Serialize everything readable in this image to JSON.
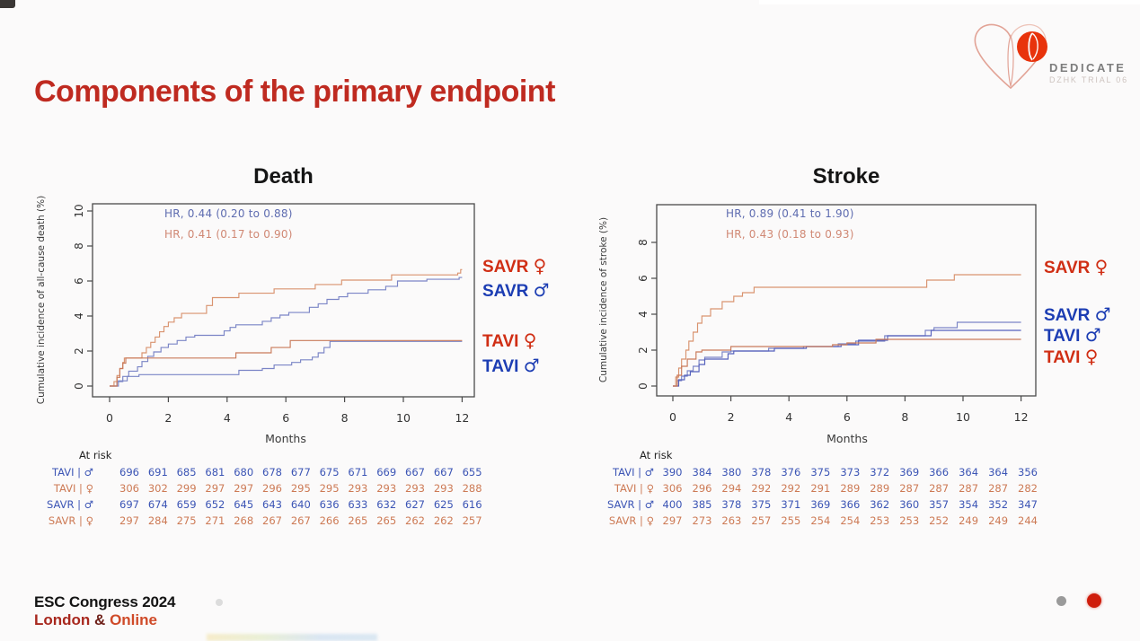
{
  "slide": {
    "title": "Components of the primary endpoint",
    "logo": {
      "name": "DEDICATE",
      "subtitle": "DZHK TRIAL 06"
    },
    "footer": {
      "line1": "ESC Congress 2024",
      "london": "London",
      "amp": "&",
      "online": "Online"
    },
    "nav_dots": [
      {
        "color": "#9a9a9a"
      },
      {
        "color": "#cf1d0c"
      }
    ]
  },
  "colors": {
    "title_red": "#bf2a20",
    "curve_female_orange": "#d9936f",
    "curve_male_blue": "#7b85c6",
    "legend_red": "#d02e14",
    "legend_blue": "#1c3db3",
    "atrisk_blue": "#3c55b5",
    "atrisk_orange": "#cd7a55",
    "axis": "#4a4a4a",
    "logo_red": "#e8330c"
  },
  "chart_data": [
    {
      "type": "line",
      "variant": "kaplan-meier-step",
      "title": "Death",
      "ylabel": "Cumulative incidence of all-cause death (%)",
      "xlabel": "Months",
      "xlim": [
        0,
        12
      ],
      "ylim": [
        0,
        10
      ],
      "xticks": [
        0,
        2,
        4,
        6,
        8,
        10,
        12
      ],
      "yticks": [
        0,
        2,
        4,
        6,
        8,
        10
      ],
      "grid": false,
      "annotations": [
        {
          "text": "HR, 0.44 (0.20 to 0.88)",
          "color": "#5e6cb0"
        },
        {
          "text": "HR, 0.41 (0.17 to 0.90)",
          "color": "#d08874"
        }
      ],
      "series": [
        {
          "name": "SAVR male",
          "color": "#7b85c6",
          "points": [
            [
              0,
              0
            ],
            [
              0.25,
              0.25
            ],
            [
              0.45,
              0.55
            ],
            [
              0.65,
              0.85
            ],
            [
              0.95,
              1.1
            ],
            [
              1.1,
              1.4
            ],
            [
              1.3,
              1.7
            ],
            [
              1.5,
              1.95
            ],
            [
              1.75,
              2.2
            ],
            [
              2.0,
              2.4
            ],
            [
              2.3,
              2.6
            ],
            [
              2.6,
              2.8
            ],
            [
              2.9,
              2.9
            ],
            [
              3.9,
              3.15
            ],
            [
              4.1,
              3.35
            ],
            [
              4.3,
              3.5
            ],
            [
              5.2,
              3.7
            ],
            [
              5.5,
              3.9
            ],
            [
              5.8,
              4.05
            ],
            [
              6.1,
              4.2
            ],
            [
              6.8,
              4.5
            ],
            [
              7.1,
              4.7
            ],
            [
              7.4,
              4.95
            ],
            [
              7.8,
              5.1
            ],
            [
              8.1,
              5.3
            ],
            [
              8.8,
              5.5
            ],
            [
              9.4,
              5.7
            ],
            [
              9.8,
              6.0
            ],
            [
              10.8,
              6.1
            ],
            [
              11.9,
              6.2
            ]
          ]
        },
        {
          "name": "TAVI male",
          "color": "#7b85c6",
          "points": [
            [
              0,
              0
            ],
            [
              0.3,
              0.3
            ],
            [
              0.6,
              0.55
            ],
            [
              1.0,
              0.65
            ],
            [
              4.2,
              0.65
            ],
            [
              4.4,
              0.9
            ],
            [
              5.2,
              1.0
            ],
            [
              5.6,
              1.2
            ],
            [
              6.2,
              1.35
            ],
            [
              6.5,
              1.5
            ],
            [
              6.9,
              1.65
            ],
            [
              7.1,
              1.9
            ],
            [
              7.3,
              2.2
            ],
            [
              7.5,
              2.55
            ]
          ]
        },
        {
          "name": "SAVR female",
          "color": "#d9936f",
          "points": [
            [
              0,
              0
            ],
            [
              0.15,
              0.25
            ],
            [
              0.25,
              0.6
            ],
            [
              0.35,
              1.0
            ],
            [
              0.45,
              1.35
            ],
            [
              0.5,
              1.6
            ],
            [
              1.0,
              1.6
            ],
            [
              1.1,
              1.9
            ],
            [
              1.25,
              2.2
            ],
            [
              1.4,
              2.5
            ],
            [
              1.55,
              2.8
            ],
            [
              1.7,
              3.1
            ],
            [
              1.85,
              3.4
            ],
            [
              2.0,
              3.65
            ],
            [
              2.2,
              3.9
            ],
            [
              2.45,
              4.15
            ],
            [
              3.3,
              4.6
            ],
            [
              3.5,
              5.05
            ],
            [
              4.4,
              5.3
            ],
            [
              5.6,
              5.55
            ],
            [
              7.0,
              5.8
            ],
            [
              7.9,
              6.05
            ],
            [
              9.6,
              6.35
            ],
            [
              11.85,
              6.45
            ],
            [
              11.95,
              6.65
            ]
          ]
        },
        {
          "name": "TAVI female",
          "color": "#c97a5a",
          "points": [
            [
              0,
              0
            ],
            [
              0.25,
              0.5
            ],
            [
              0.35,
              1.0
            ],
            [
              0.45,
              1.3
            ],
            [
              0.55,
              1.6
            ],
            [
              4.15,
              1.6
            ],
            [
              4.3,
              1.9
            ],
            [
              5.4,
              1.9
            ],
            [
              5.5,
              2.2
            ],
            [
              6.0,
              2.2
            ],
            [
              6.15,
              2.6
            ]
          ]
        }
      ],
      "legend": [
        {
          "label": "SAVR",
          "symbol": "♀",
          "color": "#d02e14",
          "y": 6.9
        },
        {
          "label": "SAVR",
          "symbol": "♂",
          "color": "#1c3db3",
          "y": 5.5
        },
        {
          "label": "TAVI",
          "symbol": "♀",
          "color": "#d02e14",
          "y": 2.6
        },
        {
          "label": "TAVI",
          "symbol": "♂",
          "color": "#1c3db3",
          "y": 1.2
        }
      ],
      "at_risk": {
        "title": "At risk",
        "rows": [
          {
            "label": "TAVI",
            "symbol": "♂",
            "color": "#3c55b5",
            "values": [
              696,
              691,
              685,
              681,
              680,
              678,
              677,
              675,
              671,
              669,
              667,
              667,
              655
            ]
          },
          {
            "label": "TAVI",
            "symbol": "♀",
            "color": "#cd7a55",
            "values": [
              306,
              302,
              299,
              297,
              297,
              296,
              295,
              295,
              293,
              293,
              293,
              293,
              288
            ]
          },
          {
            "label": "SAVR",
            "symbol": "♂",
            "color": "#3c55b5",
            "values": [
              697,
              674,
              659,
              652,
              645,
              643,
              640,
              636,
              633,
              632,
              627,
              625,
              616
            ]
          },
          {
            "label": "SAVR",
            "symbol": "♀",
            "color": "#cd7a55",
            "values": [
              297,
              284,
              275,
              271,
              268,
              267,
              267,
              266,
              265,
              265,
              262,
              262,
              257
            ]
          }
        ]
      }
    },
    {
      "type": "line",
      "variant": "kaplan-meier-step",
      "title": "Stroke",
      "ylabel": "Cumulative incidence of stroke (%)",
      "xlabel": "Months",
      "xlim": [
        0,
        12
      ],
      "ylim": [
        0,
        8
      ],
      "xticks": [
        0,
        2,
        4,
        6,
        8,
        10,
        12
      ],
      "yticks": [
        0,
        2,
        4,
        6,
        8
      ],
      "grid": false,
      "annotations": [
        {
          "text": "HR, 0.89 (0.41 to 1.90)",
          "color": "#5e6cb0"
        },
        {
          "text": "HR, 0.43 (0.18 to 0.93)",
          "color": "#d08874"
        }
      ],
      "series": [
        {
          "name": "SAVR male",
          "color": "#7b85c6",
          "points": [
            [
              0,
              0
            ],
            [
              0.15,
              0.3
            ],
            [
              0.3,
              0.55
            ],
            [
              0.5,
              0.85
            ],
            [
              0.7,
              1.1
            ],
            [
              0.9,
              1.45
            ],
            [
              1.1,
              1.6
            ],
            [
              1.7,
              1.9
            ],
            [
              2.0,
              1.95
            ],
            [
              3.3,
              2.1
            ],
            [
              4.5,
              2.2
            ],
            [
              5.7,
              2.35
            ],
            [
              6.3,
              2.5
            ],
            [
              7.3,
              2.8
            ],
            [
              8.7,
              3.1
            ],
            [
              9.0,
              3.25
            ],
            [
              9.8,
              3.55
            ]
          ]
        },
        {
          "name": "TAVI male",
          "color": "#5560bd",
          "points": [
            [
              0,
              0
            ],
            [
              0.2,
              0.35
            ],
            [
              0.4,
              0.6
            ],
            [
              0.6,
              0.8
            ],
            [
              0.9,
              1.2
            ],
            [
              1.1,
              1.5
            ],
            [
              1.9,
              1.8
            ],
            [
              2.1,
              1.95
            ],
            [
              3.5,
              2.1
            ],
            [
              4.6,
              2.2
            ],
            [
              5.8,
              2.3
            ],
            [
              6.4,
              2.55
            ],
            [
              7.4,
              2.8
            ],
            [
              8.9,
              3.1
            ]
          ]
        },
        {
          "name": "SAVR female",
          "color": "#d9936f",
          "points": [
            [
              0,
              0
            ],
            [
              0.1,
              0.5
            ],
            [
              0.2,
              1.0
            ],
            [
              0.3,
              1.5
            ],
            [
              0.45,
              2.0
            ],
            [
              0.55,
              2.5
            ],
            [
              0.7,
              3.0
            ],
            [
              0.85,
              3.5
            ],
            [
              1.0,
              3.9
            ],
            [
              1.3,
              4.3
            ],
            [
              1.7,
              4.7
            ],
            [
              2.1,
              5.0
            ],
            [
              2.4,
              5.2
            ],
            [
              2.8,
              5.5
            ],
            [
              8.6,
              5.5
            ],
            [
              8.75,
              5.9
            ],
            [
              9.7,
              6.2
            ]
          ]
        },
        {
          "name": "TAVI female",
          "color": "#c97a5a",
          "points": [
            [
              0,
              0
            ],
            [
              0.15,
              0.6
            ],
            [
              0.3,
              1.1
            ],
            [
              0.5,
              1.5
            ],
            [
              0.8,
              1.9
            ],
            [
              1.0,
              2.0
            ],
            [
              2.0,
              2.2
            ],
            [
              5.5,
              2.3
            ],
            [
              6.0,
              2.4
            ],
            [
              7.0,
              2.6
            ]
          ]
        }
      ],
      "legend": [
        {
          "label": "SAVR",
          "symbol": "♀",
          "color": "#d02e14",
          "y": 6.65
        },
        {
          "label": "SAVR",
          "symbol": "♂",
          "color": "#1c3db3",
          "y": 4.0
        },
        {
          "label": "TAVI",
          "symbol": "♂",
          "color": "#1c3db3",
          "y": 2.85
        },
        {
          "label": "TAVI",
          "symbol": "♀",
          "color": "#d02e14",
          "y": 1.65
        }
      ],
      "at_risk": {
        "title": "At risk",
        "rows": [
          {
            "label": "TAVI",
            "symbol": "♂",
            "color": "#3c55b5",
            "values": [
              390,
              384,
              380,
              378,
              376,
              375,
              373,
              372,
              369,
              366,
              364,
              364,
              356
            ]
          },
          {
            "label": "TAVI",
            "symbol": "♀",
            "color": "#cd7a55",
            "values": [
              306,
              296,
              294,
              292,
              292,
              291,
              289,
              289,
              287,
              287,
              287,
              287,
              282
            ]
          },
          {
            "label": "SAVR",
            "symbol": "♂",
            "color": "#3c55b5",
            "values": [
              400,
              385,
              378,
              375,
              371,
              369,
              366,
              362,
              360,
              357,
              354,
              352,
              347
            ]
          },
          {
            "label": "SAVR",
            "symbol": "♀",
            "color": "#cd7a55",
            "values": [
              297,
              273,
              263,
              257,
              255,
              254,
              254,
              253,
              253,
              252,
              249,
              249,
              244
            ]
          }
        ]
      }
    }
  ]
}
